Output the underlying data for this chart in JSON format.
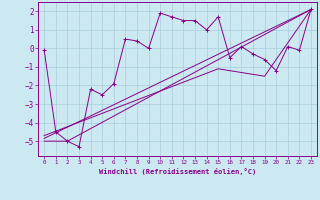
{
  "title": "",
  "xlabel": "Windchill (Refroidissement éolien,°C)",
  "ylabel": "",
  "bg_color": "#cce8f0",
  "line_color": "#880088",
  "grid_color": "#aaccdd",
  "xlim": [
    -0.5,
    23.5
  ],
  "ylim": [
    -5.8,
    2.5
  ],
  "yticks": [
    2,
    1,
    0,
    -1,
    -2,
    -3,
    -4,
    -5
  ],
  "xticks": [
    0,
    1,
    2,
    3,
    4,
    5,
    6,
    7,
    8,
    9,
    10,
    11,
    12,
    13,
    14,
    15,
    16,
    17,
    18,
    19,
    20,
    21,
    22,
    23
  ],
  "series": [
    {
      "x": [
        0,
        1,
        2,
        3,
        4,
        5,
        6,
        7,
        8,
        9,
        10,
        11,
        12,
        13,
        14,
        15,
        16,
        17,
        18,
        19,
        20,
        21,
        22,
        23
      ],
      "y": [
        -0.1,
        -4.5,
        -5.0,
        -5.3,
        -2.2,
        -2.5,
        -1.9,
        0.5,
        0.4,
        0.0,
        1.9,
        1.7,
        1.5,
        1.5,
        1.0,
        1.7,
        -0.5,
        0.1,
        -0.3,
        -0.6,
        -1.2,
        0.1,
        -0.1,
        2.1
      ],
      "marker": "+"
    },
    {
      "x": [
        0,
        2,
        23
      ],
      "y": [
        -5.0,
        -5.0,
        2.1
      ],
      "marker": null
    },
    {
      "x": [
        0,
        23
      ],
      "y": [
        -4.85,
        2.1
      ],
      "marker": null
    },
    {
      "x": [
        0,
        15,
        19,
        23
      ],
      "y": [
        -4.7,
        -1.1,
        -1.5,
        2.1
      ],
      "marker": null
    }
  ]
}
